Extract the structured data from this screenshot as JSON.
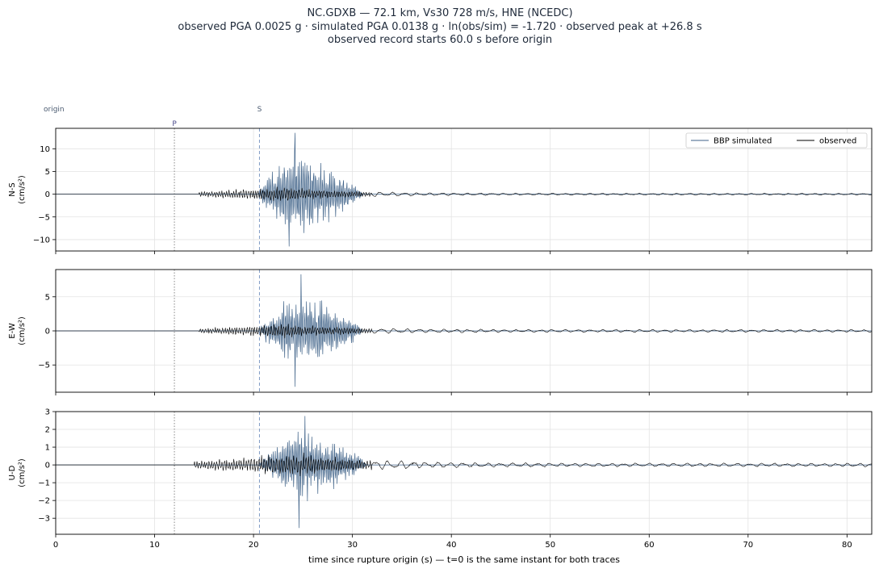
{
  "title": {
    "line1": "NC.GDXB  —  72.1 km, Vs30 728 m/s, HNE (NCEDC)",
    "line2": "observed PGA 0.0025 g   ·   simulated PGA 0.0138 g   ·   ln(obs/sim) = -1.720   ·   observed peak at +26.8 s",
    "line3": "observed record starts 60.0 s before origin"
  },
  "colors": {
    "simulated": "#3f6288",
    "observed": "#000000",
    "grid": "#e3e3e3",
    "p_line": "#888888",
    "s_line": "#7f9bc4"
  },
  "chart_data": {
    "type": "line",
    "xlabel": "time since rupture origin (s)   —   t=0 is the same instant for both traces",
    "xlim": [
      0,
      82.5
    ],
    "x_ticks": [
      0,
      10,
      20,
      30,
      40,
      50,
      60,
      70,
      80
    ],
    "grid": true,
    "legend": {
      "placement": "top-right",
      "entries": [
        "BBP simulated",
        "observed"
      ]
    },
    "phase_markers": [
      {
        "label": "origin",
        "t": 0
      },
      {
        "label": "P",
        "t": 12.0
      },
      {
        "label": "S",
        "t": 20.6
      }
    ],
    "panels": [
      {
        "component": "N-S",
        "unit": "(cm/s²)",
        "ylim": [
          -12.5,
          14.5
        ],
        "y_ticks": [
          -10,
          -5,
          0,
          5,
          10
        ],
        "series": [
          {
            "name": "BBP simulated",
            "envelope": {
              "t0": 20.5,
              "peak_t": 24.2,
              "t1": 31.0,
              "peak": 13.5,
              "neg_peak": -11.5
            },
            "extrema": [
              13.5,
              -11.5
            ]
          },
          {
            "name": "observed",
            "envelope": {
              "t0": 14.5,
              "peak_t": 23.0,
              "t1": 82.5,
              "peak": 2.5,
              "coda": 0.3
            }
          }
        ]
      },
      {
        "component": "E-W",
        "unit": "(cm/s²)",
        "ylim": [
          -9.0,
          9.0
        ],
        "y_ticks": [
          -5,
          0,
          5
        ],
        "series": [
          {
            "name": "BBP simulated",
            "envelope": {
              "t0": 20.5,
              "peak_t": 24.8,
              "t1": 31.0,
              "peak": 8.3,
              "neg_peak": -8.2
            },
            "extrema": [
              8.3,
              -8.2
            ]
          },
          {
            "name": "observed",
            "envelope": {
              "t0": 14.5,
              "peak_t": 23.0,
              "t1": 82.5,
              "peak": 1.6,
              "coda": 0.3
            }
          }
        ]
      },
      {
        "component": "U-D",
        "unit": "(cm/s²)",
        "ylim": [
          -3.9,
          3.0
        ],
        "y_ticks": [
          -3,
          -2,
          -1,
          0,
          1,
          2,
          3
        ],
        "series": [
          {
            "name": "BBP simulated",
            "envelope": {
              "t0": 20.5,
              "peak_t": 25.2,
              "t1": 31.5,
              "peak": 2.75,
              "neg_peak": -3.55
            },
            "extrema": [
              2.75,
              -3.55
            ]
          },
          {
            "name": "observed",
            "envelope": {
              "t0": 14.0,
              "peak_t": 25.0,
              "t1": 82.5,
              "peak": 1.0,
              "coda": 0.15
            }
          }
        ]
      }
    ]
  }
}
